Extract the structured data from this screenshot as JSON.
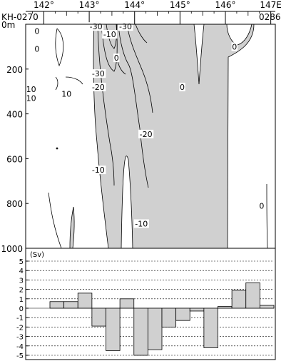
{
  "chart_data": [
    {
      "type": "contour",
      "title": "",
      "section_labels": {
        "left": "KH-0270",
        "right": "0286"
      },
      "x_ticks": [
        "142°",
        "143°",
        "144°",
        "145°",
        "146°",
        "147E"
      ],
      "x_tick_values": [
        142,
        143,
        144,
        145,
        146,
        147
      ],
      "xlim": [
        141.6,
        147.1
      ],
      "y_ticks": [
        "0m",
        "200",
        "400",
        "600",
        "800",
        "1000"
      ],
      "y_tick_values": [
        0,
        200,
        400,
        600,
        800,
        1000
      ],
      "ylim": [
        0,
        1000
      ],
      "contour_labels": [
        {
          "text": "0",
          "lon": 141.85,
          "depth": 30
        },
        {
          "text": "0",
          "lon": 141.85,
          "depth": 110
        },
        {
          "text": "10",
          "lon": 141.72,
          "depth": 290
        },
        {
          "text": "10",
          "lon": 141.72,
          "depth": 330
        },
        {
          "text": "10",
          "lon": 142.5,
          "depth": 310
        },
        {
          "text": "-30",
          "lon": 143.15,
          "depth": 10
        },
        {
          "text": "-10",
          "lon": 143.45,
          "depth": 45
        },
        {
          "text": "-30",
          "lon": 143.8,
          "depth": 10
        },
        {
          "text": "0",
          "lon": 143.6,
          "depth": 150
        },
        {
          "text": "-30",
          "lon": 143.2,
          "depth": 220
        },
        {
          "text": "-20",
          "lon": 143.2,
          "depth": 280
        },
        {
          "text": "-20",
          "lon": 144.25,
          "depth": 490
        },
        {
          "text": "-10",
          "lon": 143.2,
          "depth": 650
        },
        {
          "text": "-10",
          "lon": 144.15,
          "depth": 890
        },
        {
          "text": "0",
          "lon": 145.05,
          "depth": 280
        },
        {
          "text": "0",
          "lon": 146.2,
          "depth": 100
        },
        {
          "text": "0",
          "lon": 146.8,
          "depth": 810
        }
      ],
      "shaded": "negative values"
    },
    {
      "type": "bar",
      "ylabel": "(Sv)",
      "y_ticks": [
        "5",
        "4",
        "3",
        "2",
        "1",
        "0",
        "-1",
        "-2",
        "-3",
        "-4",
        "-5"
      ],
      "ylim": [
        -5,
        5
      ],
      "values": [
        0.7,
        0.7,
        1.6,
        -1.9,
        -4.5,
        1.0,
        -5.0,
        -4.4,
        -2.0,
        -1.3,
        -0.3,
        -4.2,
        0.2,
        1.9,
        2.7,
        0.3
      ]
    }
  ]
}
